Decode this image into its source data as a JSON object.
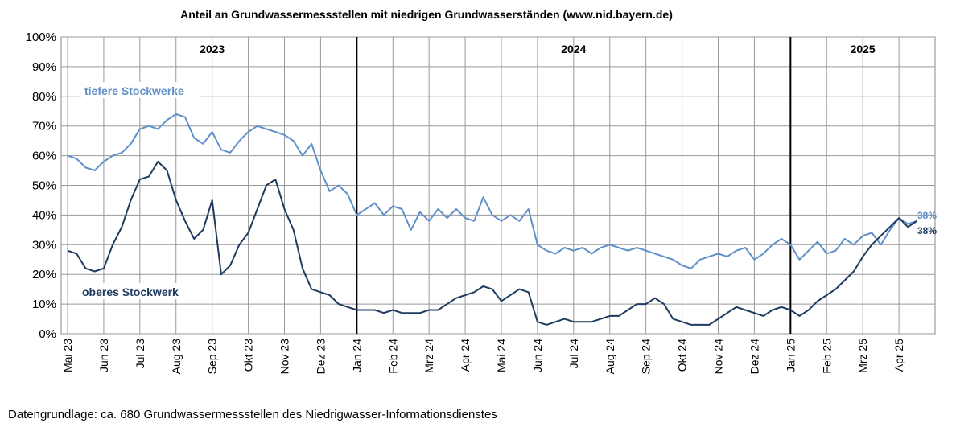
{
  "chart_data": {
    "type": "line",
    "title": "Anteil  an Grundwassermessstellen mit  niedrigen Grundwasserständen (www.nid.bayern.de)",
    "footnote": "Datengrundlage:  ca. 680 Grundwassermessstellen  des Niedrigwasser-Informationsdienstes",
    "categories": [
      "Mai 23",
      null,
      null,
      null,
      "Jun 23",
      null,
      null,
      null,
      "Jul 23",
      null,
      null,
      null,
      "Aug 23",
      null,
      null,
      null,
      "Sep 23",
      null,
      null,
      null,
      "Okt 23",
      null,
      null,
      null,
      "Nov 23",
      null,
      null,
      null,
      "Dez 23",
      null,
      null,
      null,
      "Jan 24",
      null,
      null,
      null,
      "Feb 24",
      null,
      null,
      null,
      "Mrz 24",
      null,
      null,
      null,
      "Apr 24",
      null,
      null,
      null,
      "Mai 24",
      null,
      null,
      null,
      "Jun 24",
      null,
      null,
      null,
      "Jul 24",
      null,
      null,
      null,
      "Aug 24",
      null,
      null,
      null,
      "Sep 24",
      null,
      null,
      null,
      "Okt 24",
      null,
      null,
      null,
      "Nov 24",
      null,
      null,
      null,
      "Dez 24",
      null,
      null,
      null,
      "Jan 25",
      null,
      null,
      null,
      "Feb 25",
      null,
      null,
      null,
      "Mrz 25",
      null,
      null,
      null,
      "Apr 25",
      null,
      null,
      null,
      null
    ],
    "series": [
      {
        "name": "tiefere Stockwerke",
        "color": "#5f90c9",
        "values": [
          60,
          59,
          56,
          55,
          58,
          60,
          61,
          64,
          69,
          70,
          69,
          72,
          74,
          73,
          66,
          64,
          68,
          62,
          61,
          65,
          68,
          70,
          69,
          68,
          67,
          65,
          60,
          64,
          55,
          48,
          50,
          47,
          40,
          42,
          44,
          40,
          43,
          42,
          35,
          41,
          38,
          42,
          39,
          42,
          39,
          38,
          46,
          40,
          38,
          40,
          38,
          42,
          30,
          28,
          27,
          29,
          28,
          29,
          27,
          29,
          30,
          29,
          28,
          29,
          28,
          27,
          26,
          25,
          23,
          22,
          25,
          26,
          27,
          26,
          28,
          29,
          25,
          27,
          30,
          32,
          30,
          25,
          28,
          31,
          27,
          28,
          32,
          30,
          33,
          34,
          30,
          35,
          39,
          37,
          38,
          null,
          null
        ],
        "value_labels": [
          null,
          null,
          null,
          null,
          null,
          null,
          null,
          null,
          null,
          null,
          null,
          null,
          null,
          null,
          null,
          null,
          null,
          null,
          null,
          null,
          null,
          null,
          null,
          null,
          null,
          null,
          null,
          null,
          null,
          null,
          null,
          null,
          null,
          null,
          null,
          null,
          null,
          null,
          null,
          null,
          null,
          null,
          null,
          null,
          null,
          null,
          null,
          null,
          null,
          null,
          null,
          null,
          null,
          null,
          null,
          null,
          null,
          null,
          null,
          null,
          null,
          null,
          null,
          null,
          null,
          null,
          null,
          null,
          null,
          null,
          null,
          null,
          null,
          null,
          null,
          null,
          null,
          null,
          null,
          null,
          null,
          null,
          null,
          null,
          null,
          null,
          null,
          null,
          null,
          null,
          null,
          null,
          null,
          null,
          "38%",
          null,
          null
        ]
      },
      {
        "name": "oberes Stockwerk",
        "color": "#1f3b60",
        "values": [
          28,
          27,
          22,
          21,
          22,
          30,
          36,
          45,
          52,
          53,
          58,
          55,
          45,
          38,
          32,
          35,
          45,
          20,
          23,
          30,
          34,
          42,
          50,
          52,
          42,
          35,
          22,
          15,
          14,
          13,
          10,
          9,
          8,
          8,
          8,
          7,
          8,
          7,
          7,
          7,
          8,
          8,
          10,
          12,
          13,
          14,
          16,
          15,
          11,
          13,
          15,
          14,
          4,
          3,
          4,
          5,
          4,
          4,
          4,
          5,
          6,
          6,
          8,
          10,
          10,
          12,
          10,
          5,
          4,
          3,
          3,
          3,
          5,
          7,
          9,
          8,
          7,
          6,
          8,
          9,
          8,
          6,
          8,
          11,
          13,
          15,
          18,
          21,
          26,
          30,
          33,
          36,
          39,
          36,
          38,
          null,
          null
        ],
        "value_labels": [
          null,
          null,
          null,
          null,
          null,
          null,
          null,
          null,
          null,
          null,
          null,
          null,
          null,
          null,
          null,
          null,
          null,
          null,
          null,
          null,
          null,
          null,
          null,
          null,
          null,
          null,
          null,
          null,
          null,
          null,
          null,
          null,
          null,
          null,
          null,
          null,
          null,
          null,
          null,
          null,
          null,
          null,
          null,
          null,
          null,
          null,
          null,
          null,
          null,
          null,
          null,
          null,
          null,
          null,
          null,
          null,
          null,
          null,
          null,
          null,
          null,
          null,
          null,
          null,
          null,
          null,
          null,
          null,
          null,
          null,
          null,
          null,
          null,
          null,
          null,
          null,
          null,
          null,
          null,
          null,
          null,
          null,
          null,
          null,
          null,
          null,
          null,
          null,
          null,
          null,
          null,
          null,
          null,
          null,
          "38%",
          null,
          null
        ]
      }
    ],
    "ylim": [
      0,
      100
    ],
    "yticks": [
      {
        "value": 0,
        "label": "0%"
      },
      {
        "value": 10,
        "label": "10%"
      },
      {
        "value": 20,
        "label": "20%"
      },
      {
        "value": 30,
        "label": "30%"
      },
      {
        "value": 40,
        "label": "40%"
      },
      {
        "value": 50,
        "label": "50%"
      },
      {
        "value": 60,
        "label": "60%"
      },
      {
        "value": 70,
        "label": "70%"
      },
      {
        "value": 80,
        "label": "80%"
      },
      {
        "value": 90,
        "label": "90%"
      },
      {
        "value": 100,
        "label": "100%"
      }
    ],
    "grid": true,
    "year_labels": [
      "2023",
      "2024",
      "2025"
    ],
    "dividers": [
      "Jan 24",
      "Jan 25"
    ]
  }
}
